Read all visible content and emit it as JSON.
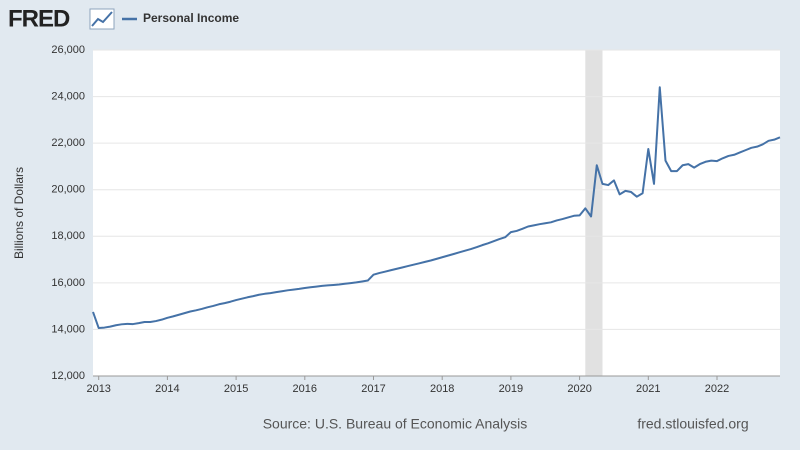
{
  "logo": "FRED",
  "chart_data": {
    "type": "line",
    "ylabel": "Billions of Dollars",
    "source": "Source: U.S. Bureau of Economic Analysis",
    "site": "fred.stlouisfed.org",
    "recessions": [
      [
        2020.083,
        2020.333
      ]
    ],
    "recession_color": "#e1e1e1",
    "grid": true,
    "xlim": [
      2012.917,
      2022.917
    ],
    "xticks": [
      2013,
      2014,
      2015,
      2016,
      2017,
      2018,
      2019,
      2020,
      2021,
      2022
    ],
    "ylim": [
      12000,
      26000
    ],
    "yticks": [
      {
        "value": 12000,
        "label": "12,000"
      },
      {
        "value": 14000,
        "label": "14,000"
      },
      {
        "value": 16000,
        "label": "16,000"
      },
      {
        "value": 18000,
        "label": "18,000"
      },
      {
        "value": 20000,
        "label": "20,000"
      },
      {
        "value": 22000,
        "label": "22,000"
      },
      {
        "value": 24000,
        "label": "24,000"
      },
      {
        "value": 26000,
        "label": "26,000"
      }
    ],
    "x": [
      2012.917,
      2013.0,
      2013.083,
      2013.167,
      2013.25,
      2013.333,
      2013.417,
      2013.5,
      2013.583,
      2013.667,
      2013.75,
      2013.833,
      2013.917,
      2014.0,
      2014.083,
      2014.167,
      2014.25,
      2014.333,
      2014.417,
      2014.5,
      2014.583,
      2014.667,
      2014.75,
      2014.833,
      2014.917,
      2015.0,
      2015.083,
      2015.167,
      2015.25,
      2015.333,
      2015.417,
      2015.5,
      2015.583,
      2015.667,
      2015.75,
      2015.833,
      2015.917,
      2016.0,
      2016.083,
      2016.167,
      2016.25,
      2016.333,
      2016.417,
      2016.5,
      2016.583,
      2016.667,
      2016.75,
      2016.833,
      2016.917,
      2017.0,
      2017.083,
      2017.167,
      2017.25,
      2017.333,
      2017.417,
      2017.5,
      2017.583,
      2017.667,
      2017.75,
      2017.833,
      2017.917,
      2018.0,
      2018.083,
      2018.167,
      2018.25,
      2018.333,
      2018.417,
      2018.5,
      2018.583,
      2018.667,
      2018.75,
      2018.833,
      2018.917,
      2019.0,
      2019.083,
      2019.167,
      2019.25,
      2019.333,
      2019.417,
      2019.5,
      2019.583,
      2019.667,
      2019.75,
      2019.833,
      2019.917,
      2020.0,
      2020.083,
      2020.167,
      2020.25,
      2020.333,
      2020.417,
      2020.5,
      2020.583,
      2020.667,
      2020.75,
      2020.833,
      2020.917,
      2021.0,
      2021.083,
      2021.167,
      2021.25,
      2021.333,
      2021.417,
      2021.5,
      2021.583,
      2021.667,
      2021.75,
      2021.833,
      2021.917,
      2022.0,
      2022.083,
      2022.167,
      2022.25,
      2022.333,
      2022.417,
      2022.5,
      2022.583,
      2022.667,
      2022.75,
      2022.833,
      2022.917
    ],
    "series": [
      {
        "name": "Personal Income",
        "color": "#4572a7",
        "values": [
          14750,
          14060,
          14080,
          14120,
          14180,
          14220,
          14240,
          14230,
          14270,
          14320,
          14320,
          14360,
          14420,
          14500,
          14560,
          14630,
          14700,
          14770,
          14820,
          14880,
          14950,
          15010,
          15080,
          15130,
          15190,
          15260,
          15320,
          15380,
          15430,
          15490,
          15530,
          15560,
          15600,
          15640,
          15680,
          15710,
          15740,
          15780,
          15810,
          15840,
          15870,
          15890,
          15910,
          15930,
          15960,
          15990,
          16020,
          16060,
          16100,
          16350,
          16420,
          16480,
          16540,
          16600,
          16660,
          16720,
          16780,
          16840,
          16900,
          16960,
          17030,
          17100,
          17170,
          17240,
          17310,
          17380,
          17450,
          17530,
          17620,
          17700,
          17790,
          17880,
          17960,
          18180,
          18230,
          18320,
          18420,
          18470,
          18520,
          18560,
          18600,
          18680,
          18740,
          18810,
          18880,
          18900,
          19200,
          18850,
          21050,
          20250,
          20200,
          20400,
          19800,
          19950,
          19900,
          19700,
          19850,
          21750,
          20250,
          24400,
          21250,
          20800,
          20800,
          21050,
          21100,
          20950,
          21100,
          21200,
          21250,
          21230,
          21350,
          21450,
          21500,
          21600,
          21700,
          21800,
          21850,
          21950,
          22100,
          22150,
          22250
        ]
      }
    ]
  }
}
